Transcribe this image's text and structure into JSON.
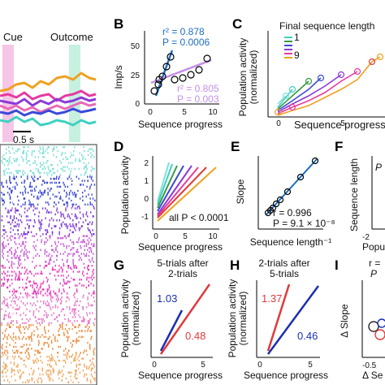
{
  "figure": {
    "left": {
      "cue_label": "Cue",
      "outcome_label": "Outcome",
      "scale_label": "0.5 s"
    },
    "panels": {
      "B": {
        "letter": "B",
        "ylabel": "Imp/s",
        "xlabel": "Sequence progress",
        "yticks": [
          "0",
          "25",
          "50"
        ],
        "xticks": [
          "0",
          "5",
          "10"
        ],
        "fit_blue": {
          "r2": "r² = 0.878",
          "p": "P = 0.0006"
        },
        "fit_purple": {
          "r2": "r² = 0.805",
          "p": "P = 0.003"
        }
      },
      "C": {
        "letter": "C",
        "ylabel_1": "Population activity",
        "ylabel_2": "(normalized)",
        "xlabel": "Sequence progress",
        "xticks": [
          "0",
          "5"
        ],
        "legend_title": "Final sequence length",
        "legend_items": [
          "1",
          "9"
        ]
      },
      "D": {
        "letter": "D",
        "ylabel": "Population activity",
        "xlabel": "Sequence progress",
        "yticks": [
          "-1",
          "0",
          "1",
          "2"
        ],
        "xticks": [
          "0",
          "5",
          "10"
        ],
        "annotation": "all P < 0.0001"
      },
      "E": {
        "letter": "E",
        "ylabel": "Slope",
        "xlabel": "Sequence length⁻¹",
        "r_text": "r = 0.996",
        "p_text": "P = 9.1 × 10⁻⁸"
      },
      "F": {
        "letter": "F",
        "ylabel": "Sequence length",
        "xlabel": "Popu",
        "xtick": "-2",
        "partial_text": "P"
      },
      "G": {
        "letter": "G",
        "title_1": "5-trials after",
        "title_2": "2-trials",
        "ylabel_1": "Population activity",
        "ylabel_2": "(normalized)",
        "xlabel": "Sequence progress",
        "xticks": [
          "0",
          "5"
        ],
        "blue_value": "1.03",
        "red_value": "0.48"
      },
      "H": {
        "letter": "H",
        "title_1": "2-trials after",
        "title_2": "5-trials",
        "ylabel_1": "Population activity",
        "ylabel_2": "(normalized)",
        "xlabel": "Sequence progress",
        "xticks": [
          "0",
          "5"
        ],
        "red_value": "1.37",
        "blue_value": "0.46"
      },
      "I": {
        "letter": "I",
        "r_partial": "r =",
        "p_partial": "P",
        "ylabel": "Δ Slope",
        "xlabel": "Δ Se",
        "xtick": "-0.5"
      }
    },
    "colors": {
      "blue": "#1f6fc0",
      "purple": "#b07fd8",
      "red": "#e03a3a",
      "darkblue": "#1a2fb0",
      "cue_band": "#f3b8e0",
      "outcome_band": "#b8ecd8"
    },
    "raster_colors": [
      "#7fe0d8",
      "#3a4ad8",
      "#7d3ad8",
      "#c85ad8",
      "#e83ab8",
      "#e87ac8",
      "#f08a3a",
      "#f0a860"
    ]
  }
}
